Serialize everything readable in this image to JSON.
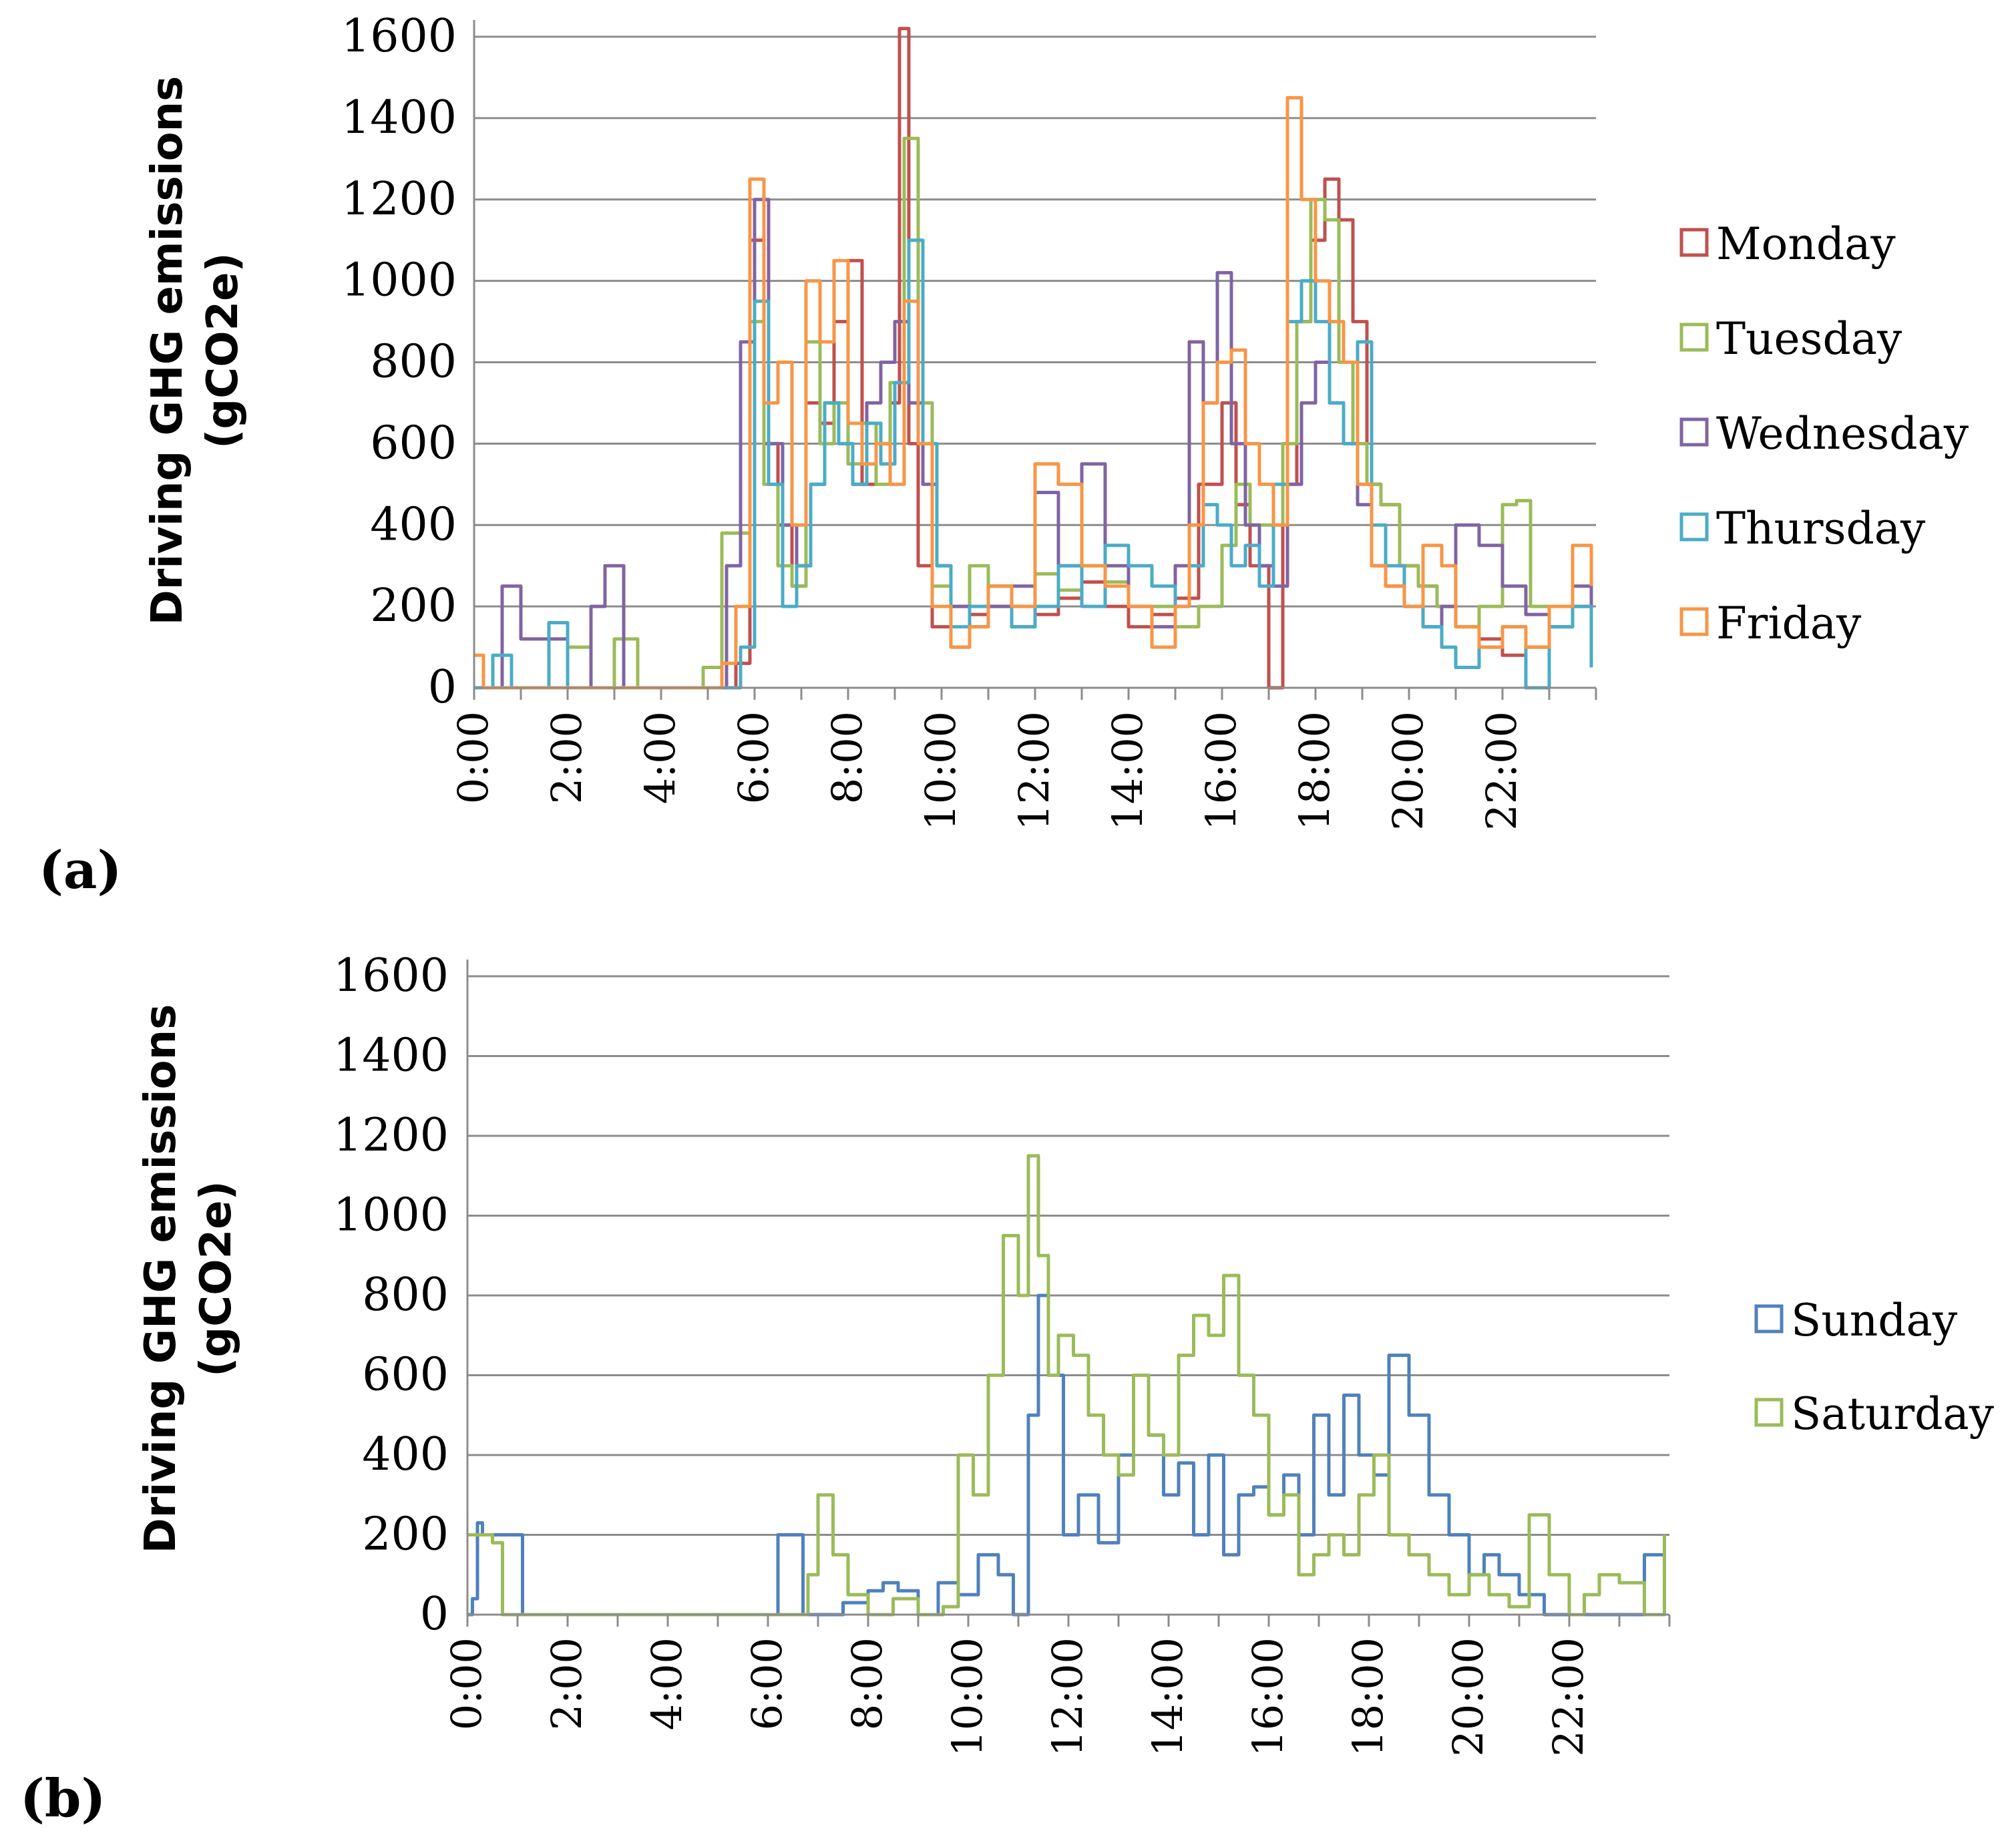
{
  "chart_data": [
    {
      "type": "line",
      "panel_label": "(a)",
      "ylabel": [
        "Driving GHG emissions",
        "(gCO2e)"
      ],
      "ylim": [
        0,
        1600
      ],
      "yticks": [
        0,
        200,
        400,
        600,
        800,
        1000,
        1200,
        1400,
        1600
      ],
      "xticks": [
        "0:00",
        "2:00",
        "4:00",
        "6:00",
        "8:00",
        "10:00",
        "12:00",
        "14:00",
        "16:00",
        "18:00",
        "20:00",
        "22:00"
      ],
      "x_unit": "hour",
      "grid": true,
      "legend_position": "right",
      "series": [
        {
          "name": "Monday",
          "color": "#c0504d",
          "x": [
            0,
            1,
            2,
            3,
            4,
            5,
            5.3,
            5.6,
            5.9,
            6.2,
            6.5,
            6.8,
            7.1,
            7.4,
            7.7,
            8,
            8.3,
            8.6,
            8.9,
            9.1,
            9.3,
            9.5,
            9.8,
            10.2,
            10.6,
            11,
            11.5,
            12,
            12.5,
            13,
            13.5,
            14,
            14.5,
            15,
            15.5,
            16,
            16.3,
            16.6,
            17,
            17.3,
            17.6,
            17.9,
            18.2,
            18.5,
            18.8,
            19.1,
            19.4,
            19.8,
            20.2,
            20.6,
            21,
            21.5,
            22,
            22.5,
            23,
            23.5,
            23.9
          ],
          "y": [
            0,
            0,
            0,
            0,
            0,
            0,
            0,
            60,
            1100,
            600,
            400,
            250,
            700,
            650,
            900,
            1050,
            500,
            600,
            700,
            1620,
            600,
            300,
            150,
            100,
            180,
            200,
            150,
            180,
            220,
            260,
            200,
            150,
            180,
            220,
            500,
            700,
            450,
            300,
            0,
            500,
            900,
            1100,
            1250,
            1150,
            900,
            500,
            450,
            300,
            250,
            200,
            150,
            120,
            80,
            100,
            150,
            200,
            100
          ]
        },
        {
          "name": "Tuesday",
          "color": "#9bbb59",
          "x": [
            0,
            0.5,
            1,
            1.5,
            2,
            2.5,
            3,
            3.5,
            4,
            4.5,
            4.9,
            5.3,
            5.6,
            5.9,
            6.2,
            6.5,
            6.8,
            7.1,
            7.4,
            7.7,
            8,
            8.3,
            8.6,
            8.9,
            9.2,
            9.5,
            9.8,
            10.2,
            10.6,
            11,
            11.5,
            12,
            12.5,
            13,
            13.5,
            14,
            14.5,
            15,
            15.5,
            16,
            16.3,
            16.6,
            17,
            17.3,
            17.6,
            17.9,
            18.2,
            18.5,
            18.8,
            19.1,
            19.4,
            19.8,
            20.2,
            20.6,
            21,
            21.5,
            22,
            22.3,
            22.6,
            23,
            23.5,
            23.9
          ],
          "y": [
            0,
            0,
            0,
            0,
            100,
            0,
            120,
            0,
            0,
            0,
            50,
            380,
            380,
            900,
            500,
            300,
            250,
            850,
            600,
            700,
            550,
            650,
            500,
            750,
            1350,
            700,
            250,
            200,
            300,
            250,
            200,
            280,
            240,
            300,
            260,
            200,
            200,
            150,
            200,
            350,
            500,
            400,
            400,
            600,
            900,
            1200,
            1150,
            800,
            600,
            500,
            450,
            300,
            250,
            200,
            150,
            200,
            450,
            460,
            200,
            150,
            200,
            100
          ]
        },
        {
          "name": "Wednesday",
          "color": "#8064a2",
          "x": [
            0,
            0.3,
            0.6,
            1,
            1.5,
            2,
            2.5,
            2.8,
            3.2,
            3.6,
            4,
            5,
            5.4,
            5.7,
            6,
            6.3,
            6.6,
            6.9,
            7.2,
            7.5,
            7.8,
            8.1,
            8.4,
            8.7,
            9,
            9.3,
            9.6,
            9.9,
            10.2,
            10.6,
            11,
            11.5,
            12,
            12.5,
            13,
            13.5,
            14,
            14.5,
            15,
            15.3,
            15.6,
            15.9,
            16.2,
            16.5,
            16.8,
            17.1,
            17.4,
            17.7,
            18,
            18.3,
            18.6,
            18.9,
            19.2,
            19.5,
            19.9,
            20.3,
            20.7,
            21,
            21.5,
            22,
            22.5,
            23,
            23.5,
            23.9
          ],
          "y": [
            0,
            0,
            250,
            120,
            120,
            0,
            200,
            300,
            0,
            0,
            0,
            0,
            300,
            850,
            1200,
            600,
            400,
            300,
            500,
            700,
            600,
            500,
            700,
            800,
            900,
            700,
            500,
            300,
            200,
            150,
            200,
            250,
            480,
            300,
            550,
            300,
            200,
            150,
            300,
            850,
            700,
            1020,
            600,
            400,
            300,
            250,
            500,
            700,
            800,
            700,
            600,
            450,
            300,
            250,
            200,
            150,
            200,
            400,
            350,
            250,
            180,
            150,
            250,
            100
          ]
        },
        {
          "name": "Thursday",
          "color": "#4bacc6",
          "x": [
            0,
            0.4,
            0.8,
            1.2,
            1.6,
            2,
            2.4,
            2.8,
            3.2,
            5,
            5.4,
            5.7,
            6,
            6.3,
            6.6,
            6.9,
            7.2,
            7.5,
            7.8,
            8.1,
            8.4,
            8.7,
            9,
            9.3,
            9.6,
            9.9,
            10.2,
            10.6,
            11,
            11.5,
            12,
            12.5,
            13,
            13.5,
            14,
            14.5,
            15,
            15.3,
            15.6,
            15.9,
            16.2,
            16.5,
            16.8,
            17.1,
            17.4,
            17.7,
            18,
            18.3,
            18.6,
            18.9,
            19.2,
            19.5,
            19.9,
            20.3,
            20.7,
            21,
            21.5,
            22,
            22.5,
            23,
            23.5,
            23.9
          ],
          "y": [
            0,
            80,
            0,
            0,
            160,
            0,
            0,
            0,
            0,
            0,
            0,
            100,
            950,
            500,
            200,
            300,
            500,
            700,
            600,
            500,
            650,
            550,
            750,
            1100,
            600,
            300,
            150,
            200,
            250,
            150,
            200,
            300,
            200,
            350,
            300,
            250,
            200,
            300,
            450,
            400,
            300,
            350,
            250,
            500,
            900,
            1000,
            900,
            700,
            600,
            850,
            400,
            300,
            200,
            150,
            100,
            50,
            100,
            150,
            0,
            150,
            200,
            50
          ]
        },
        {
          "name": "Friday",
          "color": "#f79646",
          "x": [
            0,
            0.2,
            0.5,
            1,
            1.5,
            2,
            2.5,
            3,
            4,
            5,
            5.3,
            5.6,
            5.9,
            6.2,
            6.5,
            6.8,
            7.1,
            7.4,
            7.7,
            8,
            8.3,
            8.6,
            8.9,
            9.2,
            9.5,
            9.8,
            10.2,
            10.6,
            11,
            11.5,
            12,
            12.5,
            13,
            13.5,
            14,
            14.5,
            15,
            15.3,
            15.6,
            15.9,
            16.2,
            16.5,
            16.8,
            17.1,
            17.4,
            17.7,
            18,
            18.3,
            18.6,
            18.9,
            19.2,
            19.5,
            19.9,
            20.3,
            20.7,
            21,
            21.5,
            22,
            22.5,
            23,
            23.5,
            23.9
          ],
          "y": [
            80,
            0,
            0,
            0,
            0,
            0,
            0,
            0,
            0,
            0,
            60,
            200,
            1250,
            700,
            800,
            400,
            1000,
            850,
            1050,
            650,
            550,
            600,
            500,
            950,
            600,
            200,
            100,
            150,
            250,
            200,
            550,
            500,
            300,
            250,
            200,
            100,
            200,
            400,
            700,
            800,
            830,
            600,
            500,
            400,
            1450,
            1200,
            1000,
            900,
            800,
            500,
            300,
            250,
            200,
            350,
            300,
            150,
            100,
            150,
            100,
            200,
            350,
            250
          ]
        }
      ]
    },
    {
      "type": "line",
      "panel_label": "(b)",
      "ylabel": [
        "Driving GHG emissions",
        "(gCO2e)"
      ],
      "ylim": [
        0,
        1600
      ],
      "yticks": [
        0,
        200,
        400,
        600,
        800,
        1000,
        1200,
        1400,
        1600
      ],
      "xticks": [
        "0:00",
        "2:00",
        "4:00",
        "6:00",
        "8:00",
        "10:00",
        "12:00",
        "14:00",
        "16:00",
        "18:00",
        "20:00",
        "22:00"
      ],
      "x_unit": "hour",
      "grid": true,
      "legend_position": "right",
      "series": [
        {
          "name": "Sunday",
          "color": "#4f81bd",
          "x": [
            0,
            0.1,
            0.2,
            0.3,
            1,
            1.1,
            2,
            3,
            4,
            5,
            6,
            6.2,
            6.5,
            6.7,
            7,
            7.5,
            8,
            8.3,
            8.6,
            9,
            9.4,
            9.8,
            10.2,
            10.6,
            10.9,
            11.2,
            11.4,
            11.6,
            11.9,
            12.2,
            12.6,
            13,
            13.3,
            13.6,
            13.9,
            14.2,
            14.5,
            14.8,
            15.1,
            15.4,
            15.7,
            16,
            16.3,
            16.6,
            16.9,
            17.2,
            17.5,
            17.8,
            18.1,
            18.4,
            18.8,
            19.2,
            19.6,
            20,
            20.3,
            20.6,
            21,
            21.5,
            22,
            22.5,
            23,
            23.5,
            23.9
          ],
          "y": [
            0,
            40,
            230,
            200,
            200,
            0,
            0,
            0,
            0,
            0,
            0,
            200,
            200,
            0,
            0,
            30,
            60,
            80,
            60,
            0,
            80,
            50,
            150,
            100,
            0,
            500,
            800,
            600,
            200,
            300,
            180,
            400,
            600,
            450,
            300,
            380,
            200,
            400,
            150,
            300,
            320,
            250,
            350,
            200,
            500,
            300,
            550,
            400,
            350,
            650,
            500,
            300,
            200,
            100,
            150,
            100,
            50,
            0,
            0,
            0,
            0,
            150,
            150
          ]
        },
        {
          "name": "Saturday",
          "color": "#9bbb59",
          "x": [
            0,
            0.2,
            0.5,
            0.7,
            1,
            2,
            3,
            4,
            5,
            6,
            6.5,
            6.8,
            7,
            7.3,
            7.6,
            8,
            8.5,
            9,
            9.5,
            9.8,
            10.1,
            10.4,
            10.7,
            11,
            11.2,
            11.4,
            11.6,
            11.8,
            12.1,
            12.4,
            12.7,
            13,
            13.3,
            13.6,
            13.9,
            14.2,
            14.5,
            14.8,
            15.1,
            15.4,
            15.7,
            16,
            16.3,
            16.6,
            16.9,
            17.2,
            17.5,
            17.8,
            18.1,
            18.4,
            18.8,
            19.2,
            19.6,
            20,
            20.4,
            20.8,
            21.2,
            21.6,
            22,
            22.3,
            22.6,
            23,
            23.5,
            23.9
          ],
          "y": [
            200,
            200,
            180,
            0,
            0,
            0,
            0,
            0,
            0,
            0,
            0,
            100,
            300,
            150,
            50,
            0,
            40,
            0,
            20,
            400,
            300,
            600,
            950,
            800,
            1150,
            900,
            600,
            700,
            650,
            500,
            400,
            350,
            600,
            450,
            400,
            650,
            750,
            700,
            850,
            600,
            500,
            250,
            300,
            100,
            150,
            200,
            150,
            300,
            400,
            200,
            150,
            100,
            50,
            100,
            50,
            20,
            250,
            100,
            0,
            50,
            100,
            80,
            0,
            200
          ]
        }
      ]
    }
  ]
}
